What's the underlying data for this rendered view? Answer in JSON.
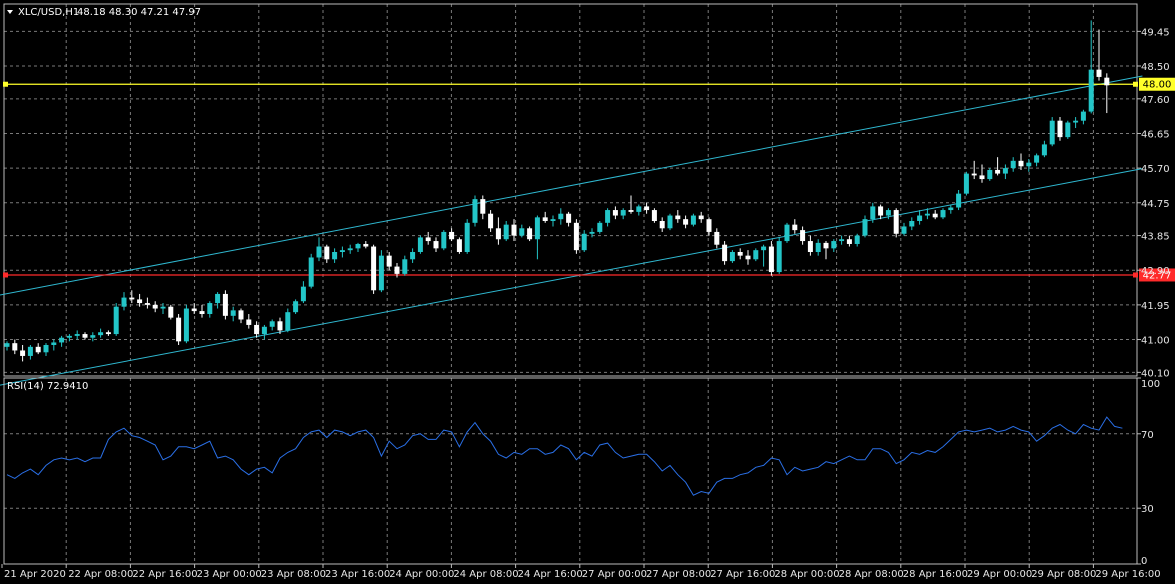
{
  "header": {
    "symbol": "XLC/USD,H1",
    "ohlc": "48.18 48.30 47.21 47.97"
  },
  "rsi_panel": {
    "label": "RSI(14) 72.9410"
  },
  "colors": {
    "background": "#000000",
    "grid": "#7a7a7a",
    "bull_candle": "#23c6c8",
    "bear_candle": "#ffffff",
    "channel": "#2fb8d0",
    "yellow_line": "#ffff2a",
    "red_line": "#ff2a2a",
    "rsi_line": "#2a6fe6"
  },
  "chart_data": [
    {
      "type": "candlestick",
      "title": "XLC/USD,H1",
      "price_ticks": [
        "49.45",
        "48.50",
        "47.60",
        "46.65",
        "45.70",
        "44.75",
        "43.85",
        "42.90",
        "41.95",
        "41.00",
        "40.10"
      ],
      "time_labels": [
        "21 Apr 2020",
        "22 Apr 08:00",
        "22 Apr 16:00",
        "23 Apr 00:00",
        "23 Apr 08:00",
        "23 Apr 16:00",
        "24 Apr 00:00",
        "24 Apr 08:00",
        "24 Apr 16:00",
        "27 Apr 00:00",
        "27 Apr 08:00",
        "27 Apr 16:00",
        "28 Apr 00:00",
        "28 Apr 08:00",
        "28 Apr 16:00",
        "29 Apr 00:00",
        "29 Apr 08:00",
        "29 Apr 16:00"
      ],
      "ylim": [
        40.0,
        50.2
      ],
      "horizontal_lines": [
        {
          "value": 48.0,
          "label": "48.00",
          "color": "#ffff2a"
        },
        {
          "value": 42.77,
          "label": "42.77",
          "color": "#ff2a2a"
        }
      ],
      "channel_lines": [
        {
          "from": [
            0,
            42.22
          ],
          "to": [
            143,
            48.12
          ]
        },
        {
          "from": [
            0,
            39.75
          ],
          "to": [
            143,
            45.58
          ]
        }
      ],
      "candles": [
        [
          40.8,
          40.95,
          40.7,
          40.9
        ],
        [
          40.9,
          41.0,
          40.6,
          40.7
        ],
        [
          40.7,
          40.85,
          40.4,
          40.55
        ],
        [
          40.55,
          40.85,
          40.45,
          40.8
        ],
        [
          40.8,
          40.9,
          40.6,
          40.65
        ],
        [
          40.65,
          40.9,
          40.55,
          40.85
        ],
        [
          40.85,
          41.0,
          40.7,
          40.92
        ],
        [
          40.92,
          41.1,
          40.8,
          41.05
        ],
        [
          41.05,
          41.15,
          40.95,
          41.1
        ],
        [
          41.1,
          41.25,
          41.0,
          41.15
        ],
        [
          41.15,
          41.2,
          41.0,
          41.05
        ],
        [
          41.05,
          41.2,
          40.95,
          41.12
        ],
        [
          41.12,
          41.3,
          41.05,
          41.2
        ],
        [
          41.2,
          41.25,
          41.1,
          41.15
        ],
        [
          41.15,
          42.0,
          41.1,
          41.9
        ],
        [
          41.9,
          42.3,
          41.8,
          42.15
        ],
        [
          42.15,
          42.35,
          42.0,
          42.1
        ],
        [
          42.1,
          42.25,
          41.9,
          42.0
        ],
        [
          42.0,
          42.15,
          41.85,
          41.95
        ],
        [
          41.95,
          42.05,
          41.75,
          41.85
        ],
        [
          41.85,
          42.0,
          41.7,
          41.9
        ],
        [
          41.9,
          41.95,
          41.55,
          41.6
        ],
        [
          41.6,
          41.7,
          40.85,
          40.95
        ],
        [
          40.95,
          41.95,
          40.9,
          41.85
        ],
        [
          41.85,
          42.0,
          41.7,
          41.78
        ],
        [
          41.78,
          41.95,
          41.6,
          41.7
        ],
        [
          41.7,
          42.05,
          41.6,
          42.0
        ],
        [
          42.0,
          42.3,
          41.85,
          42.25
        ],
        [
          42.25,
          42.35,
          41.55,
          41.65
        ],
        [
          41.65,
          41.9,
          41.5,
          41.8
        ],
        [
          41.8,
          41.85,
          41.45,
          41.55
        ],
        [
          41.55,
          41.7,
          41.3,
          41.4
        ],
        [
          41.4,
          41.5,
          41.05,
          41.15
        ],
        [
          41.15,
          41.4,
          41.0,
          41.35
        ],
        [
          41.35,
          41.55,
          41.25,
          41.5
        ],
        [
          41.5,
          41.6,
          41.15,
          41.25
        ],
        [
          41.25,
          41.85,
          41.2,
          41.75
        ],
        [
          41.75,
          42.1,
          41.7,
          42.05
        ],
        [
          42.05,
          42.6,
          42.0,
          42.45
        ],
        [
          42.45,
          43.35,
          42.4,
          43.25
        ],
        [
          43.25,
          43.8,
          43.15,
          43.55
        ],
        [
          43.55,
          43.6,
          43.1,
          43.2
        ],
        [
          43.2,
          43.5,
          43.1,
          43.4
        ],
        [
          43.4,
          43.55,
          43.25,
          43.45
        ],
        [
          43.45,
          43.6,
          43.35,
          43.5
        ],
        [
          43.5,
          43.65,
          43.4,
          43.62
        ],
        [
          43.62,
          43.7,
          43.5,
          43.55
        ],
        [
          43.55,
          43.6,
          42.25,
          42.35
        ],
        [
          42.35,
          43.45,
          42.3,
          43.3
        ],
        [
          43.3,
          43.4,
          42.9,
          43.0
        ],
        [
          43.0,
          43.1,
          42.7,
          42.8
        ],
        [
          42.8,
          43.3,
          42.75,
          43.2
        ],
        [
          43.2,
          43.5,
          43.1,
          43.4
        ],
        [
          43.4,
          43.85,
          43.35,
          43.8
        ],
        [
          43.8,
          43.95,
          43.6,
          43.7
        ],
        [
          43.7,
          43.8,
          43.4,
          43.5
        ],
        [
          43.5,
          44.0,
          43.45,
          43.95
        ],
        [
          43.95,
          44.05,
          43.7,
          43.75
        ],
        [
          43.75,
          43.8,
          43.35,
          43.4
        ],
        [
          43.4,
          44.3,
          43.35,
          44.2
        ],
        [
          44.2,
          44.95,
          44.1,
          44.85
        ],
        [
          44.85,
          44.95,
          44.3,
          44.45
        ],
        [
          44.45,
          44.55,
          43.95,
          44.05
        ],
        [
          44.05,
          44.35,
          43.6,
          43.75
        ],
        [
          43.75,
          44.25,
          43.7,
          44.15
        ],
        [
          44.15,
          44.3,
          43.7,
          43.85
        ],
        [
          43.85,
          44.15,
          43.8,
          44.05
        ],
        [
          44.05,
          44.1,
          43.7,
          43.75
        ],
        [
          43.75,
          44.4,
          43.2,
          44.35
        ],
        [
          44.35,
          44.5,
          44.2,
          44.25
        ],
        [
          44.25,
          44.4,
          44.1,
          44.3
        ],
        [
          44.3,
          44.6,
          44.15,
          44.45
        ],
        [
          44.45,
          44.5,
          44.1,
          44.2
        ],
        [
          44.2,
          44.3,
          43.35,
          43.45
        ],
        [
          43.45,
          44.0,
          43.4,
          43.9
        ],
        [
          43.9,
          44.05,
          43.8,
          43.95
        ],
        [
          43.95,
          44.25,
          43.9,
          44.2
        ],
        [
          44.2,
          44.6,
          44.1,
          44.55
        ],
        [
          44.55,
          44.65,
          44.3,
          44.4
        ],
        [
          44.4,
          44.6,
          44.3,
          44.55
        ],
        [
          44.55,
          44.95,
          44.45,
          44.5
        ],
        [
          44.5,
          44.7,
          44.4,
          44.65
        ],
        [
          44.65,
          44.75,
          44.45,
          44.55
        ],
        [
          44.55,
          44.6,
          44.2,
          44.25
        ],
        [
          44.25,
          44.35,
          43.95,
          44.05
        ],
        [
          44.05,
          44.45,
          44.0,
          44.4
        ],
        [
          44.4,
          44.55,
          44.2,
          44.3
        ],
        [
          44.3,
          44.4,
          44.05,
          44.15
        ],
        [
          44.15,
          44.45,
          44.1,
          44.4
        ],
        [
          44.4,
          44.5,
          44.2,
          44.3
        ],
        [
          44.3,
          44.35,
          43.85,
          43.95
        ],
        [
          43.95,
          44.05,
          43.5,
          43.6
        ],
        [
          43.6,
          43.7,
          43.05,
          43.15
        ],
        [
          43.15,
          43.45,
          43.1,
          43.4
        ],
        [
          43.4,
          43.5,
          43.2,
          43.3
        ],
        [
          43.3,
          43.45,
          43.05,
          43.2
        ],
        [
          43.2,
          43.5,
          43.15,
          43.45
        ],
        [
          43.45,
          43.6,
          43.0,
          43.55
        ],
        [
          43.55,
          43.7,
          42.75,
          42.85
        ],
        [
          42.85,
          43.8,
          42.8,
          43.7
        ],
        [
          43.7,
          44.2,
          43.65,
          44.15
        ],
        [
          44.15,
          44.3,
          43.9,
          44.0
        ],
        [
          44.0,
          44.1,
          43.6,
          43.7
        ],
        [
          43.7,
          43.85,
          43.3,
          43.4
        ],
        [
          43.4,
          43.75,
          43.3,
          43.65
        ],
        [
          43.65,
          43.7,
          43.2,
          43.5
        ],
        [
          43.5,
          43.75,
          43.4,
          43.7
        ],
        [
          43.7,
          43.85,
          43.6,
          43.75
        ],
        [
          43.75,
          43.85,
          43.55,
          43.62
        ],
        [
          43.62,
          43.9,
          43.55,
          43.85
        ],
        [
          43.85,
          44.4,
          43.8,
          44.3
        ],
        [
          44.3,
          44.75,
          44.2,
          44.65
        ],
        [
          44.65,
          44.7,
          44.3,
          44.4
        ],
        [
          44.4,
          44.6,
          44.3,
          44.55
        ],
        [
          44.55,
          44.6,
          43.8,
          43.9
        ],
        [
          43.9,
          44.2,
          43.85,
          44.1
        ],
        [
          44.1,
          44.35,
          44.0,
          44.25
        ],
        [
          44.25,
          44.55,
          44.15,
          44.4
        ],
        [
          44.4,
          44.6,
          44.3,
          44.45
        ],
        [
          44.45,
          44.55,
          44.3,
          44.35
        ],
        [
          44.35,
          44.6,
          44.3,
          44.55
        ],
        [
          44.55,
          44.7,
          44.45,
          44.62
        ],
        [
          44.62,
          45.1,
          44.55,
          45.0
        ],
        [
          45.0,
          45.6,
          44.95,
          45.55
        ],
        [
          45.55,
          45.9,
          45.4,
          45.5
        ],
        [
          45.5,
          45.8,
          45.3,
          45.4
        ],
        [
          45.4,
          45.7,
          45.35,
          45.65
        ],
        [
          45.65,
          46.0,
          45.5,
          45.55
        ],
        [
          45.55,
          45.8,
          45.4,
          45.7
        ],
        [
          45.7,
          46.0,
          45.6,
          45.9
        ],
        [
          45.9,
          46.1,
          45.65,
          45.75
        ],
        [
          45.75,
          45.95,
          45.6,
          45.85
        ],
        [
          45.85,
          46.1,
          45.75,
          46.05
        ],
        [
          46.05,
          46.45,
          46.0,
          46.35
        ],
        [
          46.35,
          47.1,
          46.3,
          47.0
        ],
        [
          47.0,
          47.1,
          46.45,
          46.55
        ],
        [
          46.55,
          47.0,
          46.5,
          46.95
        ],
        [
          46.95,
          47.1,
          46.8,
          47.0
        ],
        [
          47.0,
          47.3,
          46.9,
          47.25
        ],
        [
          47.25,
          49.75,
          47.2,
          48.4
        ],
        [
          48.4,
          49.5,
          48.1,
          48.2
        ],
        [
          48.18,
          48.3,
          47.21,
          47.97
        ]
      ]
    },
    {
      "type": "line",
      "title": "RSI(14) 72.9410",
      "ticks": [
        "100",
        "70",
        "30",
        "0"
      ],
      "levels": [
        70,
        30
      ],
      "ylim": [
        0,
        100
      ],
      "values": [
        48,
        46,
        49,
        51,
        48,
        53,
        56,
        57,
        56,
        57,
        55,
        57,
        57,
        67,
        71,
        73,
        69,
        68,
        66,
        64,
        56,
        58,
        63,
        63,
        62,
        64,
        66,
        57,
        58,
        56,
        51,
        48,
        51,
        52,
        49,
        57,
        60,
        62,
        68,
        71,
        72,
        68,
        72,
        71,
        69,
        71,
        72,
        68,
        58,
        66,
        62,
        64,
        69,
        70,
        67,
        67,
        72,
        71,
        63,
        71,
        76,
        70,
        66,
        59,
        57,
        60,
        59,
        62,
        62,
        59,
        60,
        64,
        62,
        56,
        60,
        58,
        64,
        65,
        60,
        57,
        58,
        59,
        59,
        55,
        50,
        53,
        48,
        44,
        37,
        39,
        38,
        44,
        46,
        46,
        48,
        49,
        52,
        53,
        57,
        56,
        48,
        52,
        50,
        51,
        52,
        55,
        54,
        56,
        58,
        56,
        56,
        62,
        62,
        60,
        54,
        56,
        60,
        59,
        61,
        60,
        63,
        67,
        71,
        72,
        71,
        72,
        73,
        71,
        72,
        74,
        72,
        71,
        66,
        69,
        73,
        75,
        72,
        70,
        75,
        73,
        72,
        79,
        74,
        73
      ]
    }
  ]
}
